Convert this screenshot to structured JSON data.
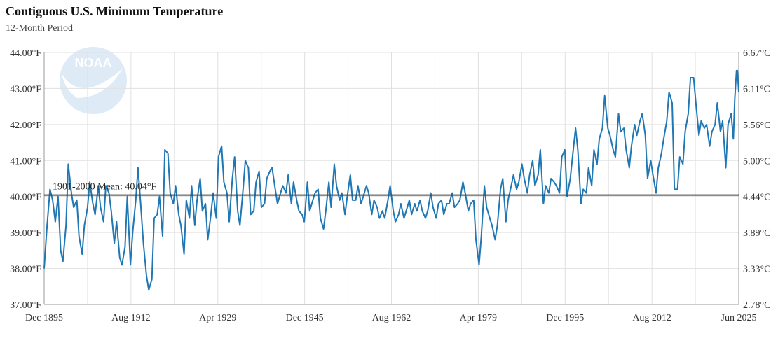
{
  "chart_data": {
    "type": "line",
    "title": "Contiguous U.S. Minimum Temperature",
    "subtitle": "12-Month Period",
    "ylim": [
      37.0,
      44.0
    ],
    "y_ticks_left": [
      "44.00°F",
      "43.00°F",
      "42.00°F",
      "41.00°F",
      "40.00°F",
      "39.00°F",
      "38.00°F",
      "37.00°F"
    ],
    "y_ticks_right": [
      "6.67°C",
      "6.11°C",
      "5.56°C",
      "5.00°C",
      "4.44°C",
      "3.89°C",
      "3.33°C",
      "2.78°C"
    ],
    "x_ticks": [
      "Dec 1895",
      "Aug 1912",
      "Apr 1929",
      "Dec 1945",
      "Aug 1962",
      "Apr 1979",
      "Dec 1995",
      "Aug 2012",
      "Jun 2025"
    ],
    "xlim": [
      "1895-12",
      "2025-06"
    ],
    "mean": {
      "label": "1901-2000 Mean: 40.04°F",
      "value": 40.04
    },
    "grid": true,
    "color": "#1f77b4",
    "series": [
      {
        "x": [
          "1895-12",
          "1896-06",
          "1897-01",
          "1897-07",
          "1898-01",
          "1898-07",
          "1899-01",
          "1899-06",
          "1900-01",
          "1900-06",
          "1901-01",
          "1901-06",
          "1902-01",
          "1902-06",
          "1903-01",
          "1903-06",
          "1904-01",
          "1904-06",
          "1905-01",
          "1905-06",
          "1906-01",
          "1906-06",
          "1907-01",
          "1907-06",
          "1908-01",
          "1908-06",
          "1909-01",
          "1909-06",
          "1910-01",
          "1910-06",
          "1911-01",
          "1911-06",
          "1912-01",
          "1912-06",
          "1913-01",
          "1913-06",
          "1914-01",
          "1914-06",
          "1915-01",
          "1915-06",
          "1916-01",
          "1916-06",
          "1917-01",
          "1917-06",
          "1918-01",
          "1918-06",
          "1919-01",
          "1919-06",
          "1920-01",
          "1920-06",
          "1921-01",
          "1921-06",
          "1922-01",
          "1922-06",
          "1923-01",
          "1923-06",
          "1924-01",
          "1924-06",
          "1925-01",
          "1925-06",
          "1926-01",
          "1926-06",
          "1927-01",
          "1927-06",
          "1928-01",
          "1928-06",
          "1929-01",
          "1929-06",
          "1930-01",
          "1930-06",
          "1931-01",
          "1931-06",
          "1932-01",
          "1932-06",
          "1933-01",
          "1933-06",
          "1934-01",
          "1934-06",
          "1935-01",
          "1935-06",
          "1936-01",
          "1936-06",
          "1937-01",
          "1937-06",
          "1938-01",
          "1938-06",
          "1939-01",
          "1939-06",
          "1940-01",
          "1940-06",
          "1941-01",
          "1941-06",
          "1942-01",
          "1942-06",
          "1943-01",
          "1943-06",
          "1944-01",
          "1944-06",
          "1945-01",
          "1945-06",
          "1946-01",
          "1946-06",
          "1947-01",
          "1947-06",
          "1948-01",
          "1948-06",
          "1949-01",
          "1949-06",
          "1950-01",
          "1950-06",
          "1951-01",
          "1951-06",
          "1952-01",
          "1952-06",
          "1953-01",
          "1953-06",
          "1954-01",
          "1954-06",
          "1955-01",
          "1955-06",
          "1956-01",
          "1956-06",
          "1957-01",
          "1957-06",
          "1958-01",
          "1958-06",
          "1959-01",
          "1959-06",
          "1960-01",
          "1960-06",
          "1961-01",
          "1961-06",
          "1962-01",
          "1962-06",
          "1963-01",
          "1963-06",
          "1964-01",
          "1964-06",
          "1965-01",
          "1965-06",
          "1966-01",
          "1966-06",
          "1967-01",
          "1967-06",
          "1968-01",
          "1968-06",
          "1969-01",
          "1969-06",
          "1970-01",
          "1970-06",
          "1971-01",
          "1971-06",
          "1972-01",
          "1972-06",
          "1973-01",
          "1973-06",
          "1974-01",
          "1974-06",
          "1975-01",
          "1975-06",
          "1976-01",
          "1976-06",
          "1977-01",
          "1977-06",
          "1978-01",
          "1978-06",
          "1979-01",
          "1979-06",
          "1980-01",
          "1980-06",
          "1981-01",
          "1981-06",
          "1982-01",
          "1982-06",
          "1983-01",
          "1983-06",
          "1984-01",
          "1984-06",
          "1985-01",
          "1985-06",
          "1986-01",
          "1986-06",
          "1987-01",
          "1987-06",
          "1988-01",
          "1988-06",
          "1989-01",
          "1989-06",
          "1990-01",
          "1990-06",
          "1991-01",
          "1991-06",
          "1992-01",
          "1992-06",
          "1993-01",
          "1993-06",
          "1994-01",
          "1994-06",
          "1995-01",
          "1995-06",
          "1996-01",
          "1996-06",
          "1997-01",
          "1997-06",
          "1998-01",
          "1998-06",
          "1999-01",
          "1999-06",
          "2000-01",
          "2000-06",
          "2001-01",
          "2001-06",
          "2002-01",
          "2002-06",
          "2003-01",
          "2003-06",
          "2004-01",
          "2004-06",
          "2005-01",
          "2005-06",
          "2006-01",
          "2006-06",
          "2007-01",
          "2007-06",
          "2008-01",
          "2008-06",
          "2009-01",
          "2009-06",
          "2010-01",
          "2010-06",
          "2011-01",
          "2011-06",
          "2012-01",
          "2012-06",
          "2013-01",
          "2013-06",
          "2014-01",
          "2014-06",
          "2015-01",
          "2015-06",
          "2016-01",
          "2016-06",
          "2017-01",
          "2017-06",
          "2018-01",
          "2018-06",
          "2019-01",
          "2019-06",
          "2020-01",
          "2020-06",
          "2021-01",
          "2021-06",
          "2022-01",
          "2022-06",
          "2023-01",
          "2023-06",
          "2024-01",
          "2024-06",
          "2024-09",
          "2025-01",
          "2025-03",
          "2025-06"
        ],
        "y": [
          38.0,
          39.1,
          40.2,
          39.9,
          39.3,
          40.0,
          38.5,
          38.2,
          39.2,
          40.9,
          40.1,
          39.7,
          39.9,
          38.9,
          38.4,
          39.2,
          39.7,
          40.4,
          39.8,
          39.5,
          40.3,
          39.7,
          39.3,
          40.3,
          40.1,
          39.6,
          38.7,
          39.3,
          38.3,
          38.1,
          38.6,
          40.0,
          38.1,
          39.0,
          39.9,
          40.8,
          39.6,
          38.7,
          37.8,
          37.4,
          37.7,
          39.4,
          39.5,
          40.0,
          38.9,
          41.3,
          41.2,
          40.1,
          39.8,
          40.3,
          39.5,
          39.2,
          38.4,
          39.9,
          39.4,
          40.3,
          39.2,
          39.9,
          40.5,
          39.6,
          39.8,
          38.8,
          39.5,
          40.1,
          39.4,
          41.1,
          41.4,
          40.4,
          40.1,
          39.3,
          40.5,
          41.1,
          39.6,
          39.2,
          40.2,
          41.0,
          40.8,
          39.5,
          39.6,
          40.4,
          40.7,
          39.7,
          39.8,
          40.5,
          40.7,
          40.8,
          40.2,
          39.8,
          40.1,
          40.3,
          40.1,
          40.6,
          39.8,
          40.4,
          39.9,
          39.6,
          39.5,
          39.3,
          40.4,
          39.6,
          39.9,
          40.1,
          40.2,
          39.4,
          39.1,
          39.6,
          40.4,
          39.7,
          40.9,
          40.3,
          39.9,
          40.1,
          39.5,
          40.0,
          40.6,
          39.9,
          39.9,
          40.3,
          39.8,
          40.0,
          40.3,
          40.1,
          39.5,
          39.9,
          39.7,
          39.4,
          39.6,
          39.4,
          39.9,
          40.3,
          39.6,
          39.3,
          39.5,
          39.8,
          39.4,
          39.6,
          39.9,
          39.5,
          39.8,
          39.6,
          39.9,
          39.6,
          39.4,
          39.6,
          40.1,
          39.7,
          39.4,
          39.8,
          39.9,
          39.5,
          39.8,
          39.8,
          40.1,
          39.7,
          39.8,
          39.9,
          40.4,
          40.1,
          39.6,
          39.8,
          39.9,
          38.8,
          38.1,
          38.9,
          40.3,
          39.7,
          39.4,
          39.2,
          38.8,
          39.2,
          40.2,
          40.5,
          39.3,
          39.9,
          40.3,
          40.6,
          40.2,
          40.4,
          40.9,
          40.5,
          40.1,
          40.6,
          41.0,
          40.3,
          40.6,
          41.3,
          39.8,
          40.3,
          40.1,
          40.5,
          40.4,
          40.3,
          40.1,
          41.1,
          41.3,
          40.0,
          40.5,
          41.1,
          41.9,
          41.3,
          39.8,
          40.2,
          40.1,
          40.8,
          40.3,
          41.3,
          40.9,
          41.6,
          41.9,
          42.8,
          41.9,
          41.7,
          41.3,
          41.1,
          42.3,
          41.8,
          41.9,
          41.3,
          40.8,
          41.4,
          42.0,
          41.7,
          42.1,
          42.3,
          41.7,
          40.5,
          41.0,
          40.6,
          40.1,
          40.8,
          41.2,
          41.6,
          42.1,
          42.9,
          42.6,
          40.2,
          40.2,
          41.1,
          40.9,
          41.8,
          42.3,
          43.3,
          43.3,
          42.6,
          41.7,
          42.1,
          41.9,
          42.0,
          41.4,
          41.8,
          42.0,
          42.6,
          41.8,
          42.1,
          40.8,
          42.0,
          42.3,
          41.6,
          42.7,
          43.5,
          43.5,
          42.9
        ]
      }
    ]
  }
}
